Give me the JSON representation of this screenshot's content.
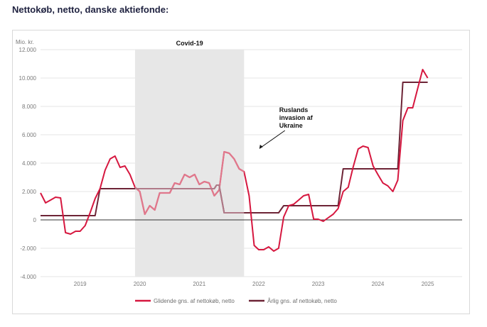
{
  "page": {
    "heading": "Nettokøb, netto, danske aktiefonde:"
  },
  "colors": {
    "rolling": "#d6173f",
    "rolling_faded": "#e0788c",
    "annual": "#6d2436",
    "shade": "#e7e7e7",
    "grid": "#e6e6e6",
    "axis": "#333333"
  },
  "chart_data": {
    "type": "line",
    "title": "Nettokøb, netto, danske aktiefonde:",
    "ylabel": "Mio. kr.",
    "ylim": [
      -4000,
      12000
    ],
    "yticks": [
      12000,
      10000,
      8000,
      6000,
      4000,
      2000,
      0,
      -2000,
      -4000
    ],
    "ytick_labels": [
      "12.000",
      "10.000",
      "8.000",
      "6.000",
      "4.000",
      "2.000",
      "0",
      "-2.000",
      "-4.000"
    ],
    "xlim": [
      "2018-07-01",
      "2025-07-31"
    ],
    "xtick_labels": [
      {
        "label": "2019",
        "x": "2019-03-01"
      },
      {
        "label": "2020",
        "x": "2020-03-01"
      },
      {
        "label": "2021",
        "x": "2021-03-01"
      },
      {
        "label": "2022",
        "x": "2022-03-01"
      },
      {
        "label": "2023",
        "x": "2023-03-01"
      },
      {
        "label": "2024",
        "x": "2024-03-01"
      },
      {
        "label": "2025",
        "x": "2025-01-01"
      }
    ],
    "grid": true,
    "legend_position": "bottom",
    "shaded_region": {
      "label": "Covid-19",
      "from": "2020-02-01",
      "to": "2021-12-01"
    },
    "annotations": [
      {
        "text_lines": [
          "Ruslands",
          "invasion af",
          "Ukraine"
        ],
        "x": "2022-02-24",
        "y": 4700
      }
    ],
    "series": [
      {
        "name": "Glidende gns. af nettokøb, netto",
        "color": "#d6173f",
        "points": [
          [
            "2018-07-01",
            1900
          ],
          [
            "2018-08-01",
            1200
          ],
          [
            "2018-09-01",
            1400
          ],
          [
            "2018-10-01",
            1600
          ],
          [
            "2018-11-01",
            1550
          ],
          [
            "2018-12-01",
            -900
          ],
          [
            "2019-01-01",
            -1000
          ],
          [
            "2019-02-01",
            -800
          ],
          [
            "2019-03-01",
            -800
          ],
          [
            "2019-04-01",
            -400
          ],
          [
            "2019-05-01",
            500
          ],
          [
            "2019-06-01",
            1500
          ],
          [
            "2019-07-01",
            2200
          ],
          [
            "2019-08-01",
            3500
          ],
          [
            "2019-09-01",
            4300
          ],
          [
            "2019-10-01",
            4500
          ],
          [
            "2019-11-01",
            3700
          ],
          [
            "2019-12-01",
            3800
          ],
          [
            "2020-01-01",
            3200
          ],
          [
            "2020-02-01",
            2300
          ],
          [
            "2020-03-01",
            2000
          ],
          [
            "2020-04-01",
            400
          ],
          [
            "2020-05-01",
            1000
          ],
          [
            "2020-06-01",
            700
          ],
          [
            "2020-07-01",
            1900
          ],
          [
            "2020-08-01",
            1900
          ],
          [
            "2020-09-01",
            1900
          ],
          [
            "2020-10-01",
            2600
          ],
          [
            "2020-11-01",
            2500
          ],
          [
            "2020-12-01",
            3200
          ],
          [
            "2021-01-01",
            3000
          ],
          [
            "2021-02-01",
            3200
          ],
          [
            "2021-03-01",
            2500
          ],
          [
            "2021-04-01",
            2700
          ],
          [
            "2021-05-01",
            2600
          ],
          [
            "2021-06-01",
            1700
          ],
          [
            "2021-07-01",
            2100
          ],
          [
            "2021-08-01",
            4800
          ],
          [
            "2021-09-01",
            4700
          ],
          [
            "2021-10-01",
            4300
          ],
          [
            "2021-11-01",
            3600
          ],
          [
            "2021-12-01",
            3400
          ],
          [
            "2022-01-01",
            1700
          ],
          [
            "2022-02-01",
            -1800
          ],
          [
            "2022-03-01",
            -2100
          ],
          [
            "2022-04-01",
            -2100
          ],
          [
            "2022-05-01",
            -1900
          ],
          [
            "2022-06-01",
            -2200
          ],
          [
            "2022-07-01",
            -2000
          ],
          [
            "2022-08-01",
            200
          ],
          [
            "2022-09-01",
            1000
          ],
          [
            "2022-10-01",
            1100
          ],
          [
            "2022-11-01",
            1400
          ],
          [
            "2022-12-01",
            1700
          ],
          [
            "2023-01-01",
            1800
          ],
          [
            "2023-02-01",
            50
          ],
          [
            "2023-03-01",
            50
          ],
          [
            "2023-04-01",
            -100
          ],
          [
            "2023-05-01",
            150
          ],
          [
            "2023-06-01",
            400
          ],
          [
            "2023-07-01",
            800
          ],
          [
            "2023-08-01",
            2000
          ],
          [
            "2023-09-01",
            2300
          ],
          [
            "2023-10-01",
            3700
          ],
          [
            "2023-11-01",
            5000
          ],
          [
            "2023-12-01",
            5200
          ],
          [
            "2024-01-01",
            5100
          ],
          [
            "2024-02-01",
            3800
          ],
          [
            "2024-03-01",
            3200
          ],
          [
            "2024-04-01",
            2600
          ],
          [
            "2024-05-01",
            2400
          ],
          [
            "2024-06-01",
            2000
          ],
          [
            "2024-07-01",
            2800
          ],
          [
            "2024-08-01",
            7000
          ],
          [
            "2024-09-01",
            7900
          ],
          [
            "2024-10-01",
            7900
          ],
          [
            "2024-11-01",
            9300
          ],
          [
            "2024-12-01",
            10600
          ],
          [
            "2025-01-01",
            10000
          ]
        ]
      },
      {
        "name": "Årlig gns. af nettokøb, netto",
        "color": "#6d2436",
        "points": [
          [
            "2018-07-01",
            300
          ],
          [
            "2019-06-01",
            300
          ],
          [
            "2019-07-01",
            2200
          ],
          [
            "2021-06-01",
            2200
          ],
          [
            "2021-06-15",
            2450
          ],
          [
            "2021-07-01",
            2450
          ],
          [
            "2021-08-01",
            500
          ],
          [
            "2022-07-01",
            500
          ],
          [
            "2022-08-01",
            1000
          ],
          [
            "2023-07-01",
            1000
          ],
          [
            "2023-08-01",
            3600
          ],
          [
            "2024-07-01",
            3600
          ],
          [
            "2024-08-01",
            9700
          ],
          [
            "2025-01-01",
            9700
          ]
        ]
      }
    ]
  },
  "legend": {
    "items": [
      {
        "label": "Glidende gns. af nettokøb, netto",
        "color": "#d6173f"
      },
      {
        "label": "Årlig gns. af nettokøb, netto",
        "color": "#6d2436"
      }
    ]
  }
}
